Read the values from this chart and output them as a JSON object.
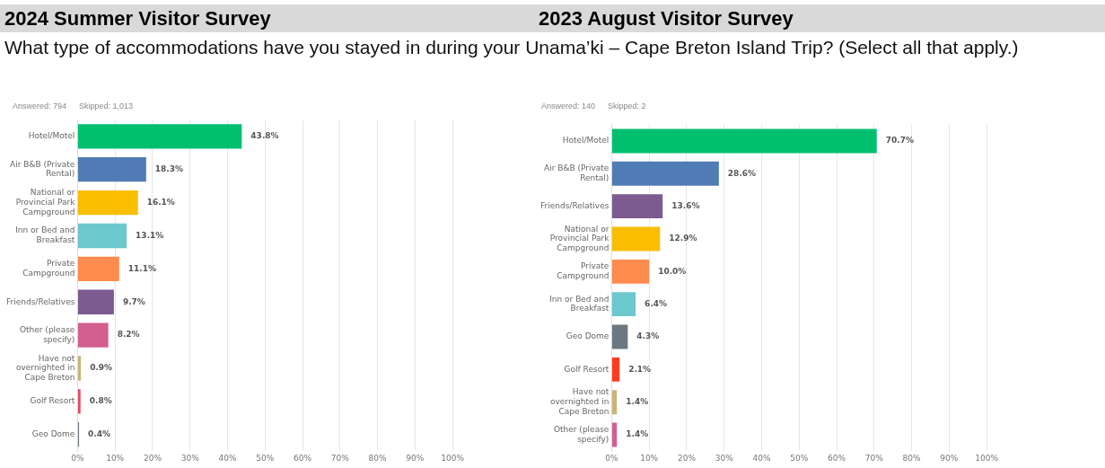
{
  "chart_data": [
    {
      "type": "bar",
      "orientation": "horizontal",
      "title": "2024 Summer Visitor Survey",
      "subtitle": "What type of accommodations have you stayed in during your Unama’ki – Cape Breton Island Trip? (Select all that apply.)",
      "annotations": [
        "Answered: 794",
        "Skipped: 1,013"
      ],
      "categories": [
        "Hotel/Motel",
        "Air B&B (Private Rental)",
        "National or Provincial Park Campground",
        "Inn or Bed and Breakfast",
        "Private Campground",
        "Friends/Relatives",
        "Other (please specify)",
        "Have not overnighted in Cape Breton",
        "Golf Resort",
        "Geo Dome"
      ],
      "values": [
        43.8,
        18.3,
        16.1,
        13.1,
        11.1,
        9.7,
        8.2,
        0.9,
        0.8,
        0.4
      ],
      "value_labels": [
        "43.8%",
        "18.3%",
        "16.1%",
        "13.1%",
        "11.1%",
        "9.7%",
        "8.2%",
        "0.9%",
        "0.8%",
        "0.4%"
      ],
      "colors": [
        "#00bf6f",
        "#507cb6",
        "#f9be00",
        "#6bc8cd",
        "#ff8b4f",
        "#7d5a8f",
        "#d25f90",
        "#c9b57a",
        "#e84a5f",
        "#6b787f"
      ],
      "xlim": [
        0,
        100
      ],
      "xticks": [
        {
          "value": 0,
          "label": "0%"
        },
        {
          "value": 10,
          "label": "10%"
        },
        {
          "value": 20,
          "label": "20%"
        },
        {
          "value": 30,
          "label": "30%"
        },
        {
          "value": 40,
          "label": "40%"
        },
        {
          "value": 50,
          "label": "50%"
        },
        {
          "value": 60,
          "label": "60%"
        },
        {
          "value": 70,
          "label": "70%"
        },
        {
          "value": 80,
          "label": "80%"
        },
        {
          "value": 90,
          "label": "90%"
        },
        {
          "value": 100,
          "label": "100%"
        }
      ],
      "grid": "x",
      "legend": false
    },
    {
      "type": "bar",
      "orientation": "horizontal",
      "title": "2023 August Visitor Survey",
      "annotations": [
        "Answered: 140",
        "Skipped: 2"
      ],
      "categories": [
        "Hotel/Motel",
        "Air B&B (Private Rental)",
        "Friends/Relatives",
        "National or Provincial Park Campground",
        "Private Campground",
        "Inn or Bed and Breakfast",
        "Geo Dome",
        "Golf Resort",
        "Have not overnighted in Cape Breton",
        "Other (please specify)"
      ],
      "values": [
        70.7,
        28.6,
        13.6,
        12.9,
        10.0,
        6.4,
        4.3,
        2.1,
        1.4,
        1.4
      ],
      "value_labels": [
        "70.7%",
        "28.6%",
        "13.6%",
        "12.9%",
        "10.0%",
        "6.4%",
        "4.3%",
        "2.1%",
        "1.4%",
        "1.4%"
      ],
      "colors": [
        "#00bf6f",
        "#507cb6",
        "#7d5a8f",
        "#f9be00",
        "#ff8b4f",
        "#6bc8cd",
        "#6b787f",
        "#ff3b1f",
        "#c9b57a",
        "#d25f90"
      ],
      "xlim": [
        0,
        100
      ],
      "xticks": [
        {
          "value": 0,
          "label": "0%"
        },
        {
          "value": 10,
          "label": "10%"
        },
        {
          "value": 20,
          "label": "20%"
        },
        {
          "value": 30,
          "label": "30%"
        },
        {
          "value": 40,
          "label": "40%"
        },
        {
          "value": 50,
          "label": "50%"
        },
        {
          "value": 60,
          "label": "60%"
        },
        {
          "value": 70,
          "label": "70%"
        },
        {
          "value": 80,
          "label": "80%"
        },
        {
          "value": 90,
          "label": "90%"
        },
        {
          "value": 100,
          "label": "100%"
        }
      ],
      "grid": "x",
      "legend": false
    }
  ]
}
